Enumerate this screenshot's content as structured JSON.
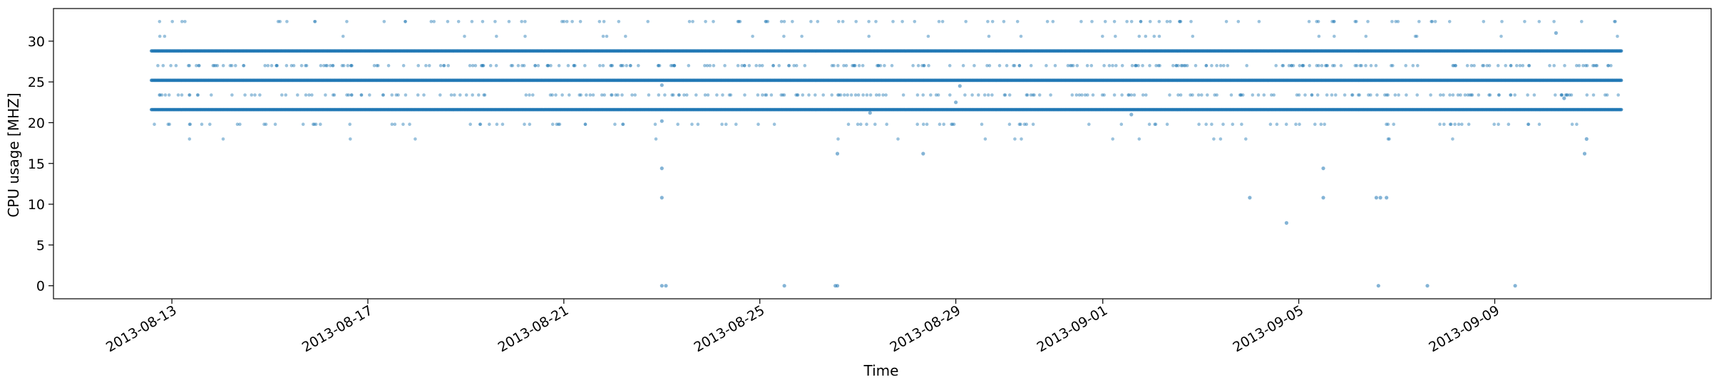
{
  "chart_data": {
    "type": "scatter",
    "title": "",
    "xlabel": "Time",
    "ylabel": "CPU usage [MHZ]",
    "xlim": [
      "2013-08-10T14:00",
      "2013-09-13T10:00"
    ],
    "ylim": [
      -1.6,
      34.0
    ],
    "grid": false,
    "legend": "none",
    "marker_color": "#1f77b4",
    "marker_alpha": 0.45,
    "data_start": "2013-08-12T14:00",
    "data_end": "2013-09-11T14:00",
    "x_ticks": [
      {
        "value": "2013-08-13",
        "label": "2013-08-13"
      },
      {
        "value": "2013-08-17",
        "label": "2013-08-17"
      },
      {
        "value": "2013-08-21",
        "label": "2013-08-21"
      },
      {
        "value": "2013-08-25",
        "label": "2013-08-25"
      },
      {
        "value": "2013-08-29",
        "label": "2013-08-29"
      },
      {
        "value": "2013-09-01",
        "label": "2013-09-01"
      },
      {
        "value": "2013-09-05",
        "label": "2013-09-05"
      },
      {
        "value": "2013-09-09",
        "label": "2013-09-09"
      }
    ],
    "y_ticks": [
      {
        "value": 0,
        "label": "0"
      },
      {
        "value": 5,
        "label": "5"
      },
      {
        "value": 10,
        "label": "10"
      },
      {
        "value": 15,
        "label": "15"
      },
      {
        "value": 20,
        "label": "20"
      },
      {
        "value": 25,
        "label": "25"
      },
      {
        "value": 30,
        "label": "30"
      }
    ],
    "series": [
      {
        "role": "dense-band",
        "y": 28.8
      },
      {
        "role": "dense-band",
        "y": 25.2
      },
      {
        "role": "dense-band",
        "y": 21.6
      }
    ],
    "secondary_levels": [
      {
        "y": 32.4,
        "density": 0.18
      },
      {
        "y": 30.6,
        "density": 0.05
      },
      {
        "y": 27.0,
        "density": 0.45
      },
      {
        "y": 23.4,
        "density": 0.4
      },
      {
        "y": 19.8,
        "density": 0.18
      },
      {
        "y": 18.0,
        "density": 0.03
      }
    ],
    "outliers": [
      {
        "x": "2013-08-23T00:00",
        "y": 0
      },
      {
        "x": "2013-08-23T02:00",
        "y": 0
      },
      {
        "x": "2013-08-23T00:00",
        "y": 14.4
      },
      {
        "x": "2013-08-23T00:00",
        "y": 10.8
      },
      {
        "x": "2013-08-23T00:00",
        "y": 20.2
      },
      {
        "x": "2013-08-23T00:00",
        "y": 24.6
      },
      {
        "x": "2013-08-25T12:00",
        "y": 0
      },
      {
        "x": "2013-08-26T13:00",
        "y": 0
      },
      {
        "x": "2013-08-26T14:00",
        "y": 0
      },
      {
        "x": "2013-08-26T14:00",
        "y": 16.2
      },
      {
        "x": "2013-08-28T08:00",
        "y": 16.2
      },
      {
        "x": "2013-08-27T06:00",
        "y": 21.2
      },
      {
        "x": "2013-08-29T00:00",
        "y": 22.5
      },
      {
        "x": "2013-08-29T02:00",
        "y": 24.5
      },
      {
        "x": "2013-09-01T14:00",
        "y": 21.0
      },
      {
        "x": "2013-09-04T00:00",
        "y": 10.8
      },
      {
        "x": "2013-09-04T18:00",
        "y": 7.7
      },
      {
        "x": "2013-09-05T12:00",
        "y": 14.4
      },
      {
        "x": "2013-09-05T12:00",
        "y": 10.8
      },
      {
        "x": "2013-09-06T14:00",
        "y": 10.8
      },
      {
        "x": "2013-09-06T16:00",
        "y": 10.8
      },
      {
        "x": "2013-09-06T19:00",
        "y": 10.8
      },
      {
        "x": "2013-09-06T15:00",
        "y": 0
      },
      {
        "x": "2013-09-07T15:00",
        "y": 0
      },
      {
        "x": "2013-09-09T10:00",
        "y": 0
      },
      {
        "x": "2013-09-10T20:00",
        "y": 16.2
      },
      {
        "x": "2013-09-10T21:00",
        "y": 18.0
      },
      {
        "x": "2013-09-10T06:00",
        "y": 31.0
      },
      {
        "x": "2013-09-10T10:00",
        "y": 23.0
      }
    ]
  }
}
